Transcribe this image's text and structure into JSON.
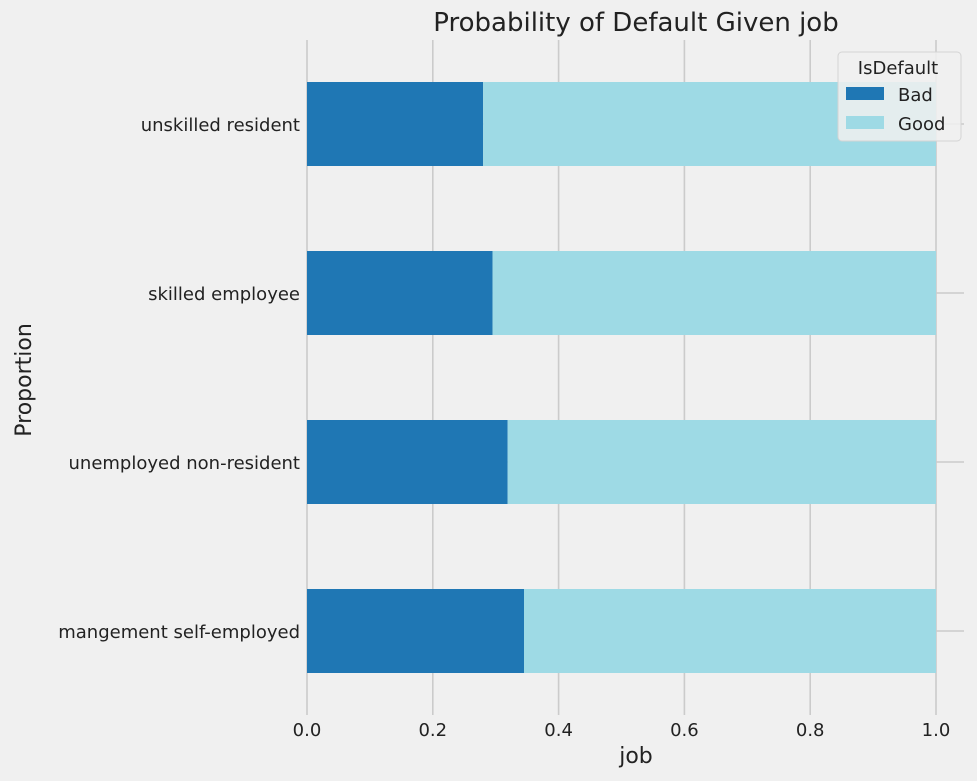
{
  "chart_data": {
    "type": "bar",
    "orientation": "horizontal",
    "stacked": true,
    "title": "Probability of Default Given job",
    "xlabel": "job",
    "ylabel": "Proportion",
    "xlim": [
      0,
      1
    ],
    "x_ticks": [
      "0.0",
      "0.2",
      "0.4",
      "0.6",
      "0.8",
      "1.0"
    ],
    "grid": true,
    "categories": [
      "unskilled resident",
      "skilled employee",
      "unemployed non-resident",
      "mangement self-employed"
    ],
    "series": [
      {
        "name": "Bad",
        "color": "#1f77b4",
        "values": [
          0.28,
          0.295,
          0.319,
          0.345
        ]
      },
      {
        "name": "Good",
        "color": "#9edae5",
        "values": [
          0.72,
          0.705,
          0.681,
          0.655
        ]
      }
    ],
    "legend": {
      "title": "IsDefault",
      "position": "top-right"
    }
  }
}
